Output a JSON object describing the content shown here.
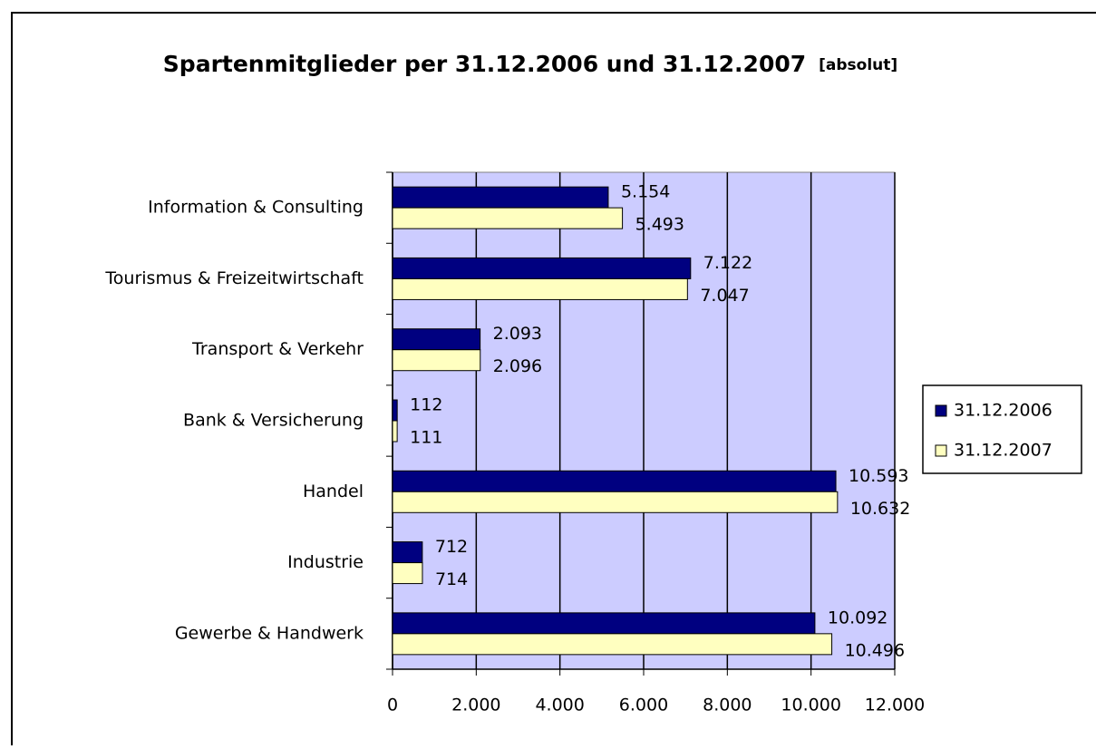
{
  "chart_data": {
    "type": "barh",
    "title": "Spartenmitglieder per 31.12.2006 und 31.12.2007",
    "subtitle": "[absolut]",
    "categories": [
      "Information & Consulting",
      "Tourismus & Freizeitwirtschaft",
      "Transport & Verkehr",
      "Bank & Versicherung",
      "Handel",
      "Industrie",
      "Gewerbe & Handwerk"
    ],
    "series": [
      {
        "name": "31.12.2006",
        "color": "#000080",
        "values": [
          5154,
          7122,
          2093,
          112,
          10593,
          712,
          10092
        ],
        "value_labels": [
          "5.154",
          "7.122",
          "2.093",
          "112",
          "10.593",
          "712",
          "10.092"
        ]
      },
      {
        "name": "31.12.2007",
        "color": "#ffffc0",
        "values": [
          5493,
          7047,
          2096,
          111,
          10632,
          714,
          10496
        ],
        "value_labels": [
          "5.493",
          "7.047",
          "2.096",
          "111",
          "10.632",
          "714",
          "10.496"
        ]
      }
    ],
    "xlim": [
      0,
      12000
    ],
    "xticks": [
      0,
      {
        "value": 2000,
        "label": "2.000"
      },
      {
        "value": 4000,
        "label": "4.000"
      },
      {
        "value": 6000,
        "label": "6.000"
      },
      {
        "value": 8000,
        "label": "8.000"
      },
      {
        "value": 10000,
        "label": "10.000"
      },
      {
        "value": 12000,
        "label": "12.000"
      }
    ],
    "grid": true,
    "plot_background": "#ccccff",
    "legend": "right"
  }
}
